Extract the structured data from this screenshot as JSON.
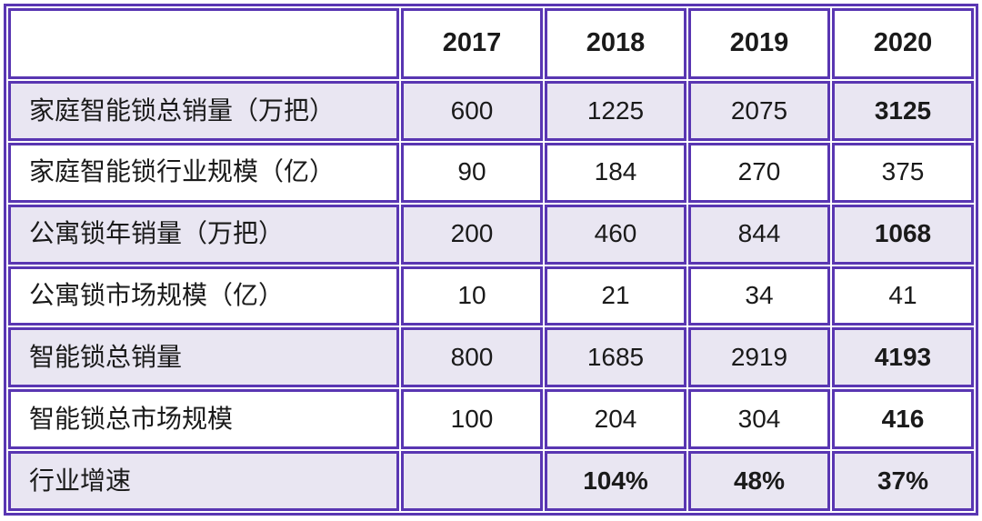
{
  "chart_data": {
    "type": "table",
    "title": "",
    "columns": [
      "",
      "2017",
      "2018",
      "2019",
      "2020"
    ],
    "rows": [
      [
        "家庭智能锁总销量（万把）",
        600,
        1225,
        2075,
        3125
      ],
      [
        "家庭智能锁行业规模（亿）",
        90,
        184,
        270,
        375
      ],
      [
        "公寓锁年销量（万把）",
        200,
        460,
        844,
        1068
      ],
      [
        "公寓锁市场规模（亿）",
        10,
        21,
        34,
        41
      ],
      [
        "智能锁总销量",
        800,
        1685,
        2919,
        4193
      ],
      [
        "智能锁总市场规模",
        100,
        204,
        304,
        416
      ],
      [
        "行业增速",
        null,
        "104%",
        "48%",
        "37%"
      ]
    ]
  },
  "table": {
    "header": {
      "corner": "",
      "years": [
        "2017",
        "2018",
        "2019",
        "2020"
      ]
    },
    "rows": [
      {
        "label": "家庭智能锁总销量（万把）",
        "label_bold": false,
        "shaded": true,
        "values": [
          {
            "text": "600",
            "bold": false
          },
          {
            "text": "1225",
            "bold": false
          },
          {
            "text": "2075",
            "bold": false
          },
          {
            "text": "3125",
            "bold": true
          }
        ]
      },
      {
        "label": "家庭智能锁行业规模（亿）",
        "label_bold": false,
        "shaded": false,
        "values": [
          {
            "text": "90",
            "bold": false
          },
          {
            "text": "184",
            "bold": false
          },
          {
            "text": "270",
            "bold": false
          },
          {
            "text": "375",
            "bold": false
          }
        ]
      },
      {
        "label": "公寓锁年销量（万把）",
        "label_bold": false,
        "shaded": true,
        "values": [
          {
            "text": "200",
            "bold": false
          },
          {
            "text": "460",
            "bold": false
          },
          {
            "text": "844",
            "bold": false
          },
          {
            "text": "1068",
            "bold": true
          }
        ]
      },
      {
        "label": "公寓锁市场规模（亿）",
        "label_bold": false,
        "shaded": false,
        "values": [
          {
            "text": "10",
            "bold": false
          },
          {
            "text": "21",
            "bold": false
          },
          {
            "text": "34",
            "bold": false
          },
          {
            "text": "41",
            "bold": false
          }
        ]
      },
      {
        "label": "智能锁总销量",
        "label_bold": true,
        "shaded": true,
        "values": [
          {
            "text": "800",
            "bold": false
          },
          {
            "text": "1685",
            "bold": false
          },
          {
            "text": "2919",
            "bold": false
          },
          {
            "text": "4193",
            "bold": true
          }
        ]
      },
      {
        "label": "智能锁总市场规模",
        "label_bold": true,
        "shaded": false,
        "values": [
          {
            "text": "100",
            "bold": false
          },
          {
            "text": "204",
            "bold": false
          },
          {
            "text": "304",
            "bold": false
          },
          {
            "text": "416",
            "bold": true
          }
        ]
      },
      {
        "label": "行业增速",
        "label_bold": true,
        "shaded": true,
        "values": [
          {
            "text": "",
            "bold": false
          },
          {
            "text": "104%",
            "bold": true
          },
          {
            "text": "48%",
            "bold": true
          },
          {
            "text": "37%",
            "bold": true
          }
        ]
      }
    ]
  },
  "colors": {
    "border_purple": "#5936b2",
    "shaded_row": "#e9e6f2",
    "text": "#1a1a1a",
    "background": "#ffffff"
  }
}
